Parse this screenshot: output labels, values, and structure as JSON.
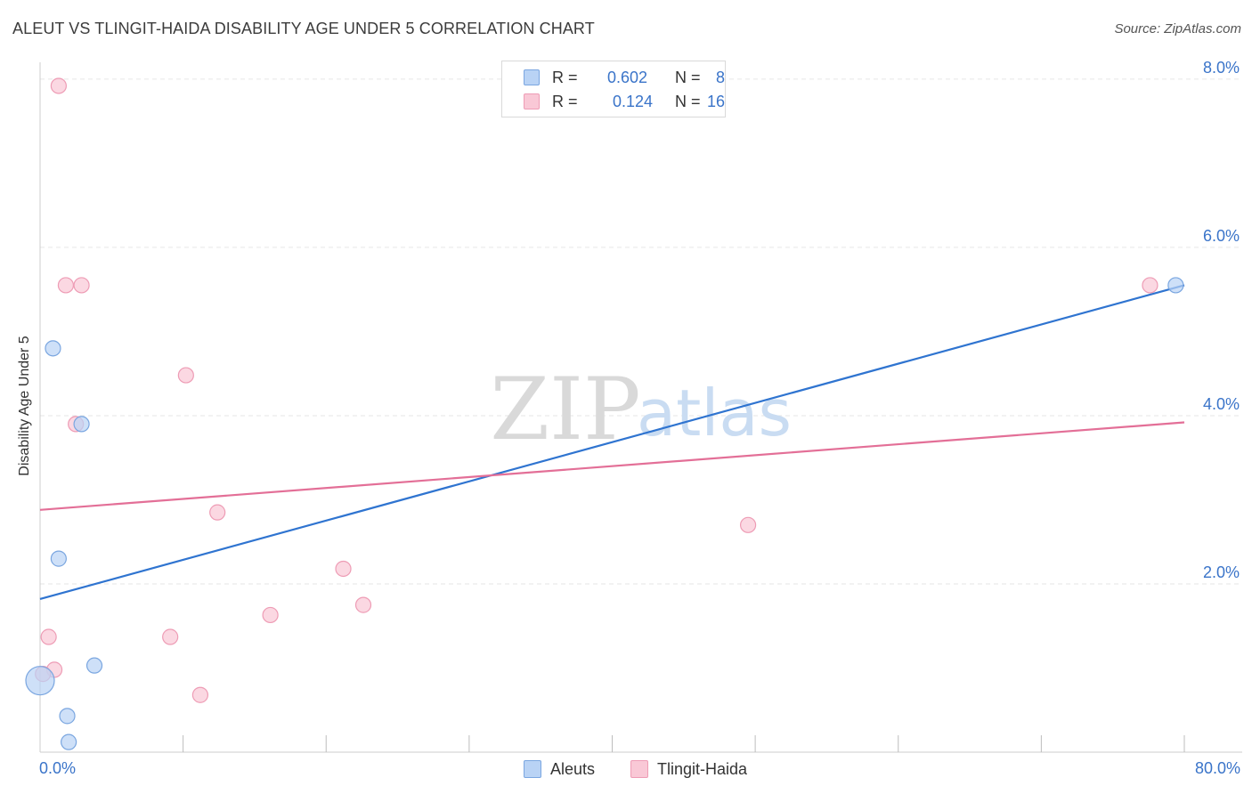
{
  "header": {
    "title": "ALEUT VS TLINGIT-HAIDA DISABILITY AGE UNDER 5 CORRELATION CHART",
    "source": "Source: ZipAtlas.com"
  },
  "watermark": {
    "zip": "ZIP",
    "atlas": "atlas"
  },
  "legend_stats": [
    {
      "r_label": "R =",
      "r_value": "0.602",
      "n_label": "N =",
      "n_value": "8"
    },
    {
      "r_label": "R =",
      "r_value": "0.124",
      "n_label": "N =",
      "n_value": "16"
    }
  ],
  "colors": {
    "aleut_fill": "#b9d3f5",
    "aleut_stroke": "#7aa6e0",
    "aleut_line": "#2f74d0",
    "tlingit_fill": "#f9c8d6",
    "tlingit_stroke": "#ee9cb5",
    "tlingit_line": "#e36f97",
    "grid": "#e6e6e6",
    "tick_text": "#3a74c9"
  },
  "chart_data": {
    "type": "scatter",
    "title": "ALEUT VS TLINGIT-HAIDA DISABILITY AGE UNDER 5 CORRELATION CHART",
    "xlabel": "",
    "ylabel": "Disability Age Under 5",
    "xlim": [
      0,
      80
    ],
    "ylim": [
      0,
      8.2
    ],
    "x_tick_labels": [
      "0.0%",
      "80.0%"
    ],
    "y_ticks": [
      2,
      4,
      6,
      8
    ],
    "y_tick_labels": [
      "2.0%",
      "4.0%",
      "6.0%",
      "8.0%"
    ],
    "grid": true,
    "series": [
      {
        "name": "Aleuts",
        "r": 0.602,
        "n": 8,
        "points": [
          {
            "x": 0.0,
            "y": 0.85,
            "size": "large"
          },
          {
            "x": 0.9,
            "y": 4.8
          },
          {
            "x": 2.9,
            "y": 3.9
          },
          {
            "x": 1.3,
            "y": 2.3
          },
          {
            "x": 3.8,
            "y": 1.03
          },
          {
            "x": 1.9,
            "y": 0.43
          },
          {
            "x": 2.0,
            "y": 0.12
          },
          {
            "x": 79.4,
            "y": 5.55
          }
        ],
        "trend": {
          "x": [
            0,
            80
          ],
          "y": [
            1.82,
            5.55
          ]
        }
      },
      {
        "name": "Tlingit-Haida",
        "r": 0.124,
        "n": 16,
        "points": [
          {
            "x": 1.3,
            "y": 7.92
          },
          {
            "x": 1.8,
            "y": 5.55
          },
          {
            "x": 2.9,
            "y": 5.55
          },
          {
            "x": 10.2,
            "y": 4.48
          },
          {
            "x": 2.5,
            "y": 3.9
          },
          {
            "x": 12.4,
            "y": 2.85
          },
          {
            "x": 49.5,
            "y": 2.7
          },
          {
            "x": 21.2,
            "y": 2.18
          },
          {
            "x": 22.6,
            "y": 1.75
          },
          {
            "x": 16.1,
            "y": 1.63
          },
          {
            "x": 0.6,
            "y": 1.37
          },
          {
            "x": 9.1,
            "y": 1.37
          },
          {
            "x": 1.0,
            "y": 0.98
          },
          {
            "x": 0.2,
            "y": 0.93
          },
          {
            "x": 11.2,
            "y": 0.68
          },
          {
            "x": 77.6,
            "y": 5.55
          }
        ],
        "trend": {
          "x": [
            0,
            80
          ],
          "y": [
            2.88,
            3.92
          ]
        }
      }
    ]
  }
}
